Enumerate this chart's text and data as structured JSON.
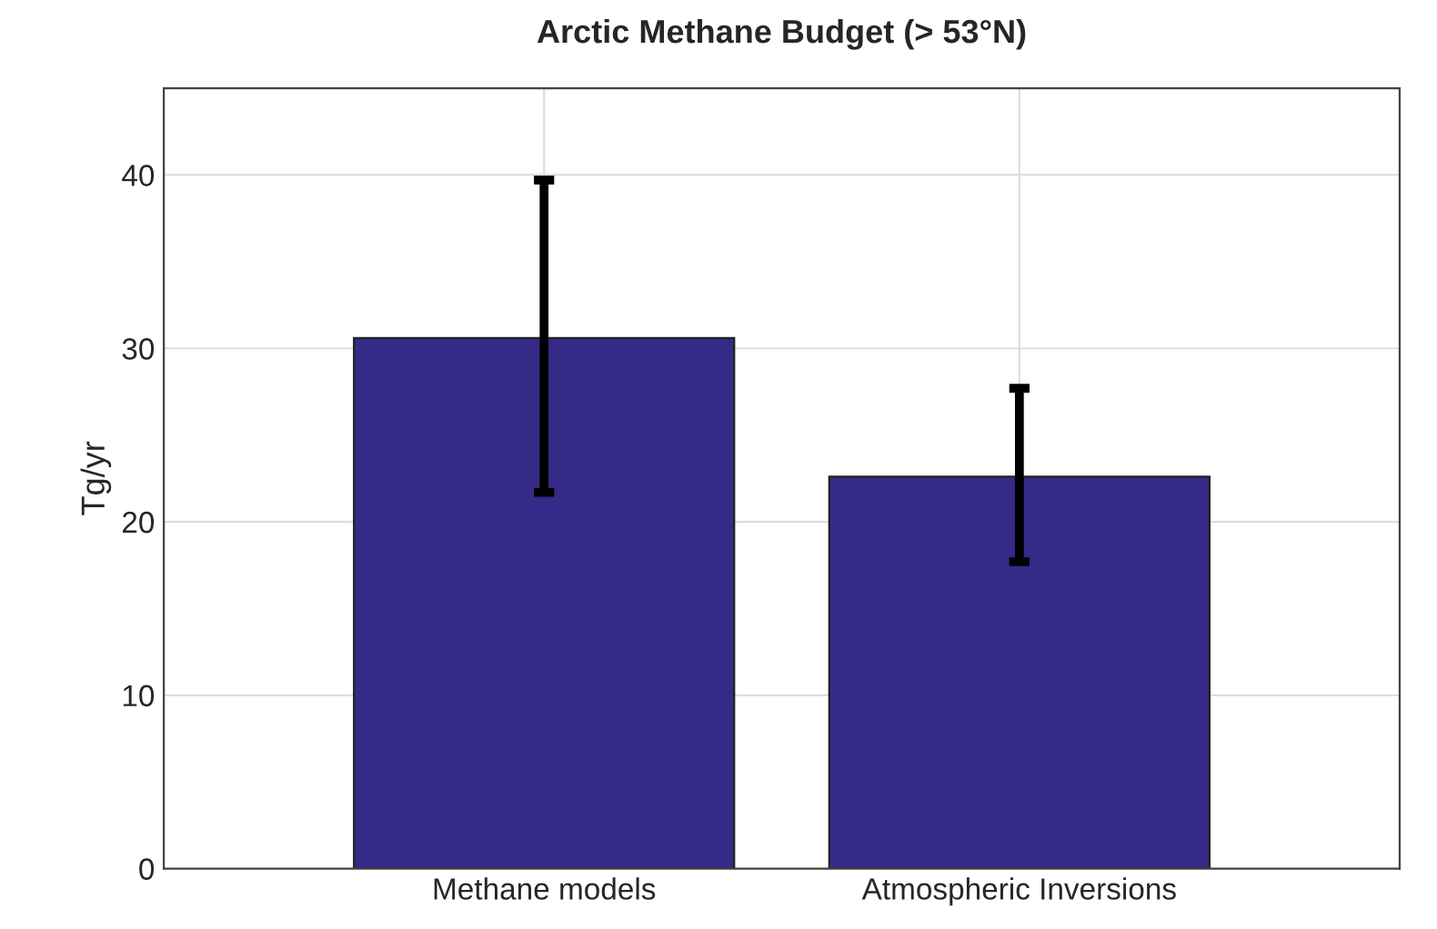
{
  "chart_data": {
    "type": "bar",
    "title": "Arctic Methane Budget (> 53°N)",
    "ylabel": "Tg/yr",
    "categories": [
      "Methane models",
      "Atmospheric Inversions"
    ],
    "values": [
      30.6,
      22.6
    ],
    "errors": [
      [
        21.7,
        39.7
      ],
      [
        17.7,
        27.7
      ]
    ],
    "color": "#352a87",
    "ylim": [
      0,
      45
    ],
    "yticks": [
      0,
      10,
      20,
      30,
      40
    ],
    "grid": true
  }
}
